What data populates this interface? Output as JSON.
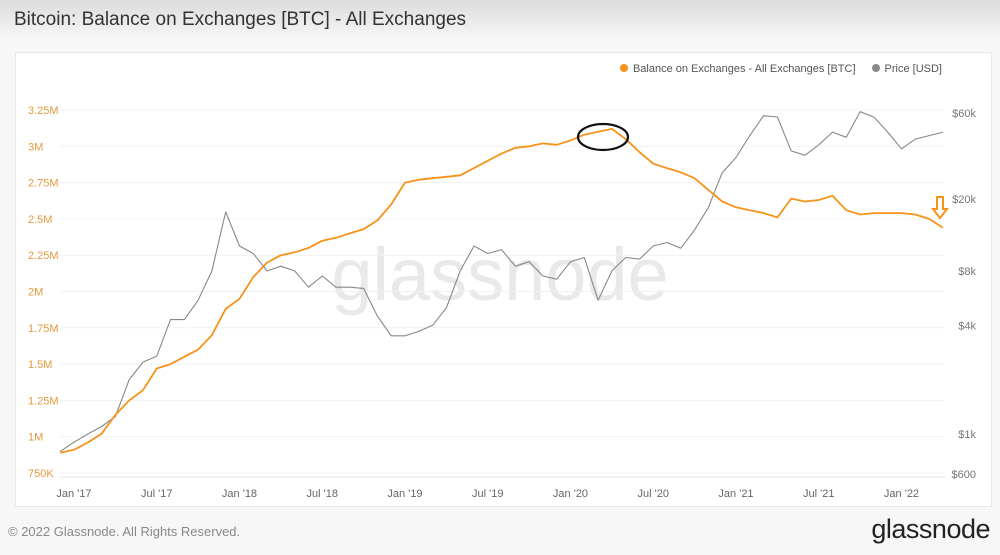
{
  "header": {
    "title": "Bitcoin: Balance on Exchanges [BTC] - All Exchanges"
  },
  "footer": {
    "copyright": "© 2022 Glassnode. All Rights Reserved.",
    "logo": "glassnode"
  },
  "watermark": "glassnode",
  "colors": {
    "balance": "#f7931a",
    "price": "#888888",
    "annotation_ellipse": "#111111",
    "annotation_arrow": "#f7931a"
  },
  "chart_data": {
    "type": "line",
    "title": "Bitcoin: Balance on Exchanges [BTC] - All Exchanges",
    "legend_position": "top-right",
    "grid": true,
    "x_ticks": [
      "Jan '17",
      "Jul '17",
      "Jan '18",
      "Jul '18",
      "Jan '19",
      "Jul '19",
      "Jan '20",
      "Jul '20",
      "Jan '21",
      "Jul '21",
      "Jan '22"
    ],
    "x_tick_dates": [
      "2017-01",
      "2017-07",
      "2018-01",
      "2018-07",
      "2019-01",
      "2019-07",
      "2020-01",
      "2020-07",
      "2021-01",
      "2021-07",
      "2022-01"
    ],
    "y_left": {
      "ticks": [
        "750K",
        "1M",
        "1.25M",
        "1.5M",
        "1.75M",
        "2M",
        "2.25M",
        "2.5M",
        "2.75M",
        "3M",
        "3.25M"
      ],
      "tick_values": [
        750000,
        1000000,
        1250000,
        1500000,
        1750000,
        2000000,
        2250000,
        2500000,
        2750000,
        3000000,
        3250000
      ],
      "range": [
        750000,
        3250000
      ],
      "scale": "linear"
    },
    "y_right": {
      "ticks": [
        "$600",
        "$1k",
        "$4k",
        "$8k",
        "$20k",
        "$60k"
      ],
      "tick_values": [
        600,
        1000,
        4000,
        8000,
        20000,
        60000
      ],
      "range": [
        600,
        60000
      ],
      "scale": "log"
    },
    "x": [
      "2016-12",
      "2017-01",
      "2017-02",
      "2017-03",
      "2017-04",
      "2017-05",
      "2017-06",
      "2017-07",
      "2017-08",
      "2017-09",
      "2017-10",
      "2017-11",
      "2017-12",
      "2018-01",
      "2018-02",
      "2018-03",
      "2018-04",
      "2018-05",
      "2018-06",
      "2018-07",
      "2018-08",
      "2018-09",
      "2018-10",
      "2018-11",
      "2018-12",
      "2019-01",
      "2019-02",
      "2019-03",
      "2019-04",
      "2019-05",
      "2019-06",
      "2019-07",
      "2019-08",
      "2019-09",
      "2019-10",
      "2019-11",
      "2019-12",
      "2020-01",
      "2020-02",
      "2020-03",
      "2020-04",
      "2020-05",
      "2020-06",
      "2020-07",
      "2020-08",
      "2020-09",
      "2020-10",
      "2020-11",
      "2020-12",
      "2021-01",
      "2021-02",
      "2021-03",
      "2021-04",
      "2021-05",
      "2021-06",
      "2021-07",
      "2021-08",
      "2021-09",
      "2021-10",
      "2021-11",
      "2021-12",
      "2022-01",
      "2022-02",
      "2022-03",
      "2022-04"
    ],
    "series": [
      {
        "name": "Balance on Exchanges - All Exchanges [BTC]",
        "axis": "left",
        "values": [
          890000,
          910000,
          960000,
          1020000,
          1150000,
          1250000,
          1320000,
          1470000,
          1500000,
          1550000,
          1600000,
          1700000,
          1880000,
          1950000,
          2100000,
          2200000,
          2250000,
          2270000,
          2300000,
          2350000,
          2370000,
          2400000,
          2430000,
          2490000,
          2600000,
          2750000,
          2770000,
          2780000,
          2790000,
          2800000,
          2850000,
          2900000,
          2950000,
          2990000,
          3000000,
          3020000,
          3010000,
          3040000,
          3080000,
          3100000,
          3120000,
          3050000,
          2960000,
          2880000,
          2850000,
          2820000,
          2780000,
          2700000,
          2620000,
          2580000,
          2560000,
          2540000,
          2510000,
          2640000,
          2620000,
          2630000,
          2660000,
          2560000,
          2530000,
          2540000,
          2540000,
          2540000,
          2530000,
          2500000,
          2440000
        ]
      },
      {
        "name": "Price [USD]",
        "axis": "right",
        "values": [
          800,
          900,
          1000,
          1100,
          1250,
          2000,
          2500,
          2700,
          4300,
          4300,
          5500,
          8000,
          17000,
          11000,
          10000,
          8000,
          8500,
          8000,
          6500,
          7500,
          6500,
          6500,
          6400,
          4500,
          3500,
          3500,
          3700,
          4000,
          5000,
          8000,
          11000,
          10000,
          10500,
          8500,
          9000,
          7500,
          7200,
          9000,
          9500,
          5500,
          8000,
          9500,
          9300,
          11000,
          11500,
          10700,
          13500,
          18000,
          28000,
          34000,
          45000,
          58000,
          57000,
          37000,
          35000,
          40000,
          47000,
          44000,
          61000,
          57000,
          47000,
          38000,
          43000,
          45000,
          47000
        ]
      }
    ],
    "annotations": [
      {
        "type": "ellipse",
        "around": "2020-03 peak of Balance on Exchanges"
      },
      {
        "type": "down-arrow",
        "at": "2022-04 Balance on Exchanges"
      }
    ]
  }
}
